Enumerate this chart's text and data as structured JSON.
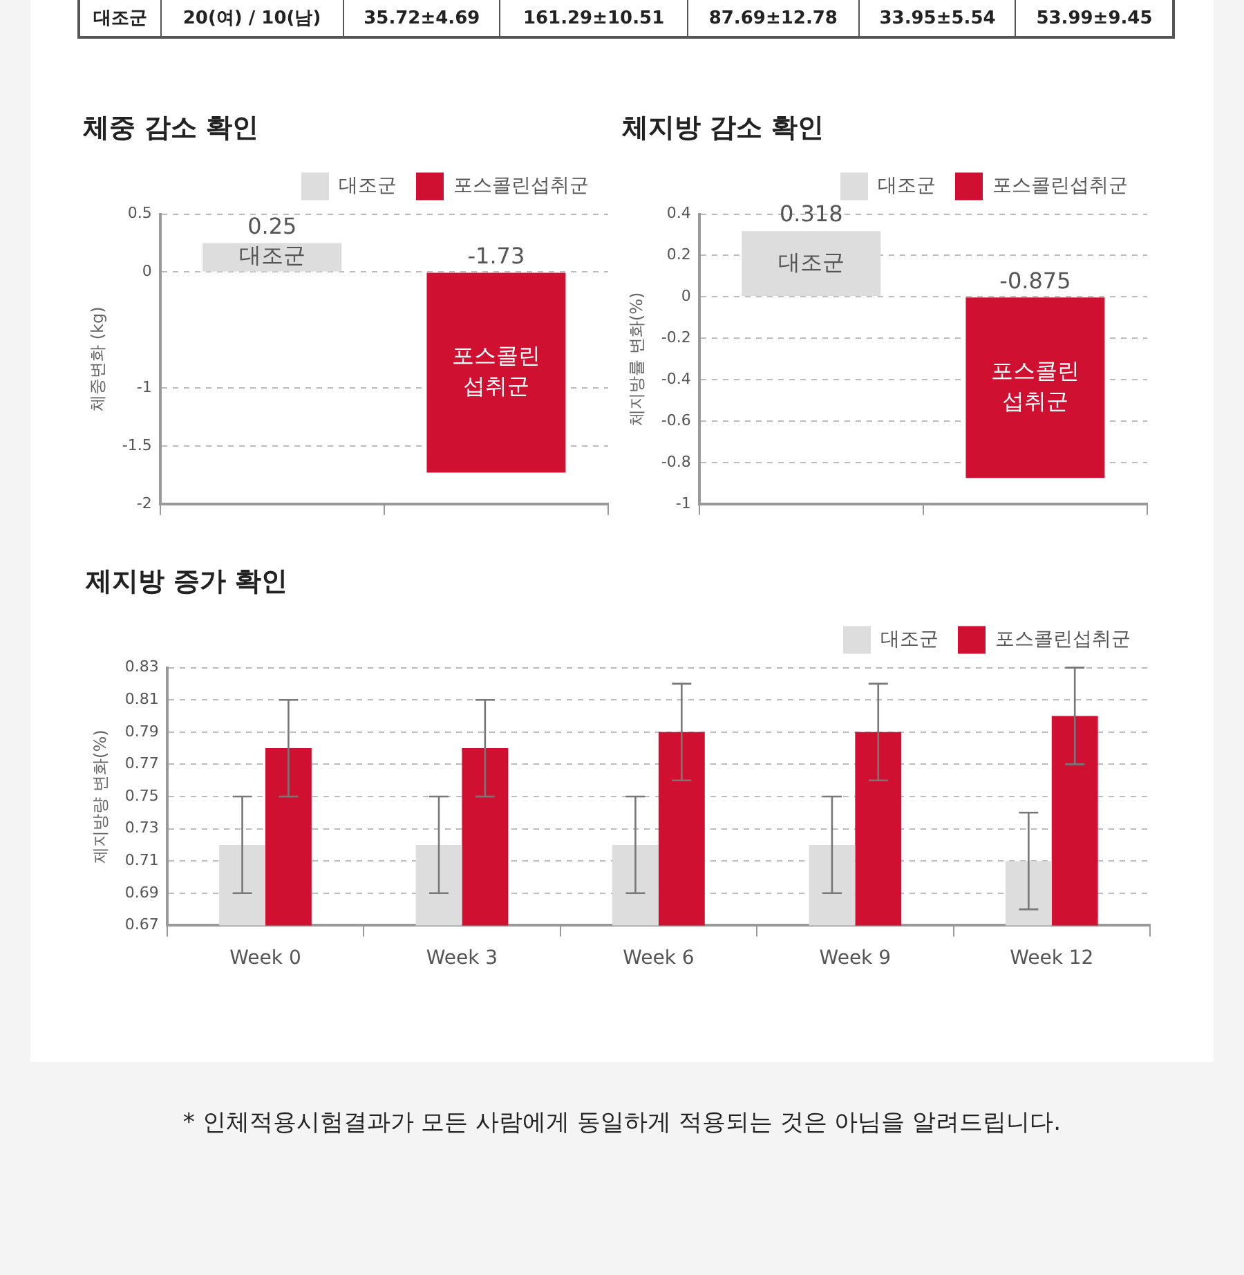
{
  "chart_data": [
    {
      "type": "other",
      "annotations": [
        "대조군",
        "20(여) / 10(남)",
        "35.72±4.69",
        "161.29±10.51",
        "87.69±12.78",
        "33.95±5.54",
        "53.99±9.45"
      ]
    },
    {
      "type": "bar",
      "title": "체중 감소 확인",
      "ylabel": "체중변화 (kg)",
      "categories": [
        "대조군",
        "포스콜린 섭취군"
      ],
      "series": [
        {
          "name": "대조군",
          "color": "#dddddd",
          "values": [
            0.25,
            null
          ]
        },
        {
          "name": "포스콜린섭취군",
          "color": "#d01030",
          "values": [
            null,
            -1.73
          ]
        }
      ],
      "ylim": [
        -2,
        0.5
      ],
      "yticks": [
        0.5,
        0,
        -1,
        -1.5,
        -2
      ],
      "grid": "y",
      "legend": "top right",
      "data_labels": true,
      "tick_labels": "y"
    },
    {
      "type": "bar",
      "title": "체지방 감소 확인",
      "ylabel": "체지방률 변화(%)",
      "categories": [
        "대조군",
        "포스콜린 섭취군"
      ],
      "series": [
        {
          "name": "대조군",
          "color": "#dddddd",
          "values": [
            0.318,
            null
          ]
        },
        {
          "name": "포스콜린섭취군",
          "color": "#d01030",
          "values": [
            null,
            -0.875
          ]
        }
      ],
      "ylim": [
        -1,
        0.4
      ],
      "yticks": [
        0.4,
        0.2,
        0,
        -0.2,
        -0.4,
        -0.6,
        -0.8,
        -1
      ],
      "grid": "y",
      "legend": "top right",
      "data_labels": true,
      "tick_labels": "y"
    },
    {
      "type": "bar",
      "title": "제지방 증가 확인",
      "ylabel": "제지방량 변화(%)",
      "categories": [
        "Week 0",
        "Week 3",
        "Week 6",
        "Week 9",
        "Week 12"
      ],
      "series": [
        {
          "name": "대조군",
          "color": "#dddddd",
          "values": [
            0.72,
            0.72,
            0.72,
            0.72,
            0.71
          ],
          "errors": [
            0.03,
            0.03,
            0.03,
            0.03,
            0.03
          ]
        },
        {
          "name": "포스콜린섭취군",
          "color": "#d01030",
          "values": [
            0.78,
            0.78,
            0.79,
            0.79,
            0.8
          ],
          "errors": [
            0.03,
            0.03,
            0.03,
            0.03,
            0.03
          ]
        }
      ],
      "ylim": [
        0.67,
        0.83
      ],
      "yticks": [
        0.67,
        0.69,
        0.71,
        0.73,
        0.75,
        0.77,
        0.79,
        0.81,
        0.83
      ],
      "grid": "y",
      "legend": "top right",
      "annotations": [
        "* 인체적용시험결과가 모든 사람에게 동일하게 적용되는 것은 아님을 알려드립니다."
      ]
    }
  ]
}
